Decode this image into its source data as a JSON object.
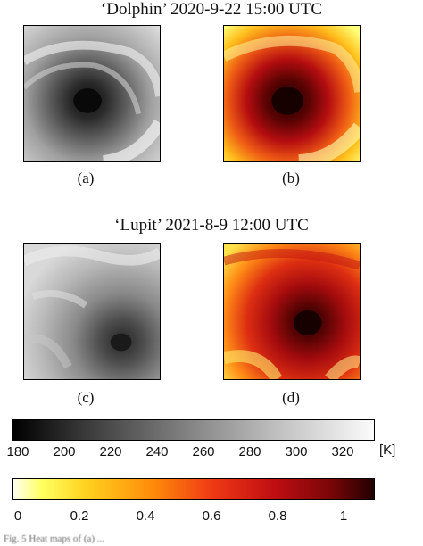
{
  "figure": {
    "top_title": "‘Dolphin’ 2020-9-22 15:00 UTC",
    "bottom_title": "‘Lupit’ 2021-8-9 12:00 UTC",
    "panel_labels": [
      "(a)",
      "(b)",
      "(c)",
      "(d)"
    ],
    "caption": "Fig. 5   Heat maps of (a) ..."
  },
  "colorbars": {
    "temperature": {
      "ticks": [
        "180",
        "200",
        "220",
        "240",
        "260",
        "280",
        "300",
        "320"
      ],
      "unit": "[K]",
      "colors": [
        "#000000",
        "#ffffff"
      ]
    },
    "normalized": {
      "ticks": [
        "0",
        "0.2",
        "0.4",
        "0.6",
        "0.8",
        "1"
      ],
      "colors": [
        "#fffff0",
        "#ffff60",
        "#ff8e0a",
        "#c10e12",
        "#220000"
      ]
    }
  }
}
